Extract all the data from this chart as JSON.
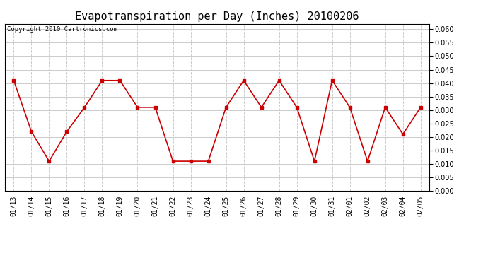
{
  "title": "Evapotranspiration per Day (Inches) 20100206",
  "copyright": "Copyright 2010 Cartronics.com",
  "dates": [
    "01/13",
    "01/14",
    "01/15",
    "01/16",
    "01/17",
    "01/18",
    "01/19",
    "01/20",
    "01/21",
    "01/22",
    "01/23",
    "01/24",
    "01/25",
    "01/26",
    "01/27",
    "01/28",
    "01/29",
    "01/30",
    "01/31",
    "02/01",
    "02/02",
    "02/03",
    "02/04",
    "02/05"
  ],
  "values": [
    0.041,
    0.022,
    0.011,
    0.022,
    0.031,
    0.041,
    0.041,
    0.031,
    0.031,
    0.011,
    0.011,
    0.011,
    0.031,
    0.041,
    0.031,
    0.041,
    0.031,
    0.011,
    0.041,
    0.031,
    0.011,
    0.031,
    0.021,
    0.031
  ],
  "line_color": "#cc0000",
  "marker": "s",
  "marker_size": 3,
  "ylim": [
    0.0,
    0.062
  ],
  "yticks": [
    0.0,
    0.005,
    0.01,
    0.015,
    0.02,
    0.025,
    0.03,
    0.035,
    0.04,
    0.045,
    0.05,
    0.055,
    0.06
  ],
  "grid_color": "#cccccc",
  "background_color": "#ffffff",
  "title_fontsize": 11,
  "copyright_fontsize": 6.5,
  "tick_fontsize": 7
}
